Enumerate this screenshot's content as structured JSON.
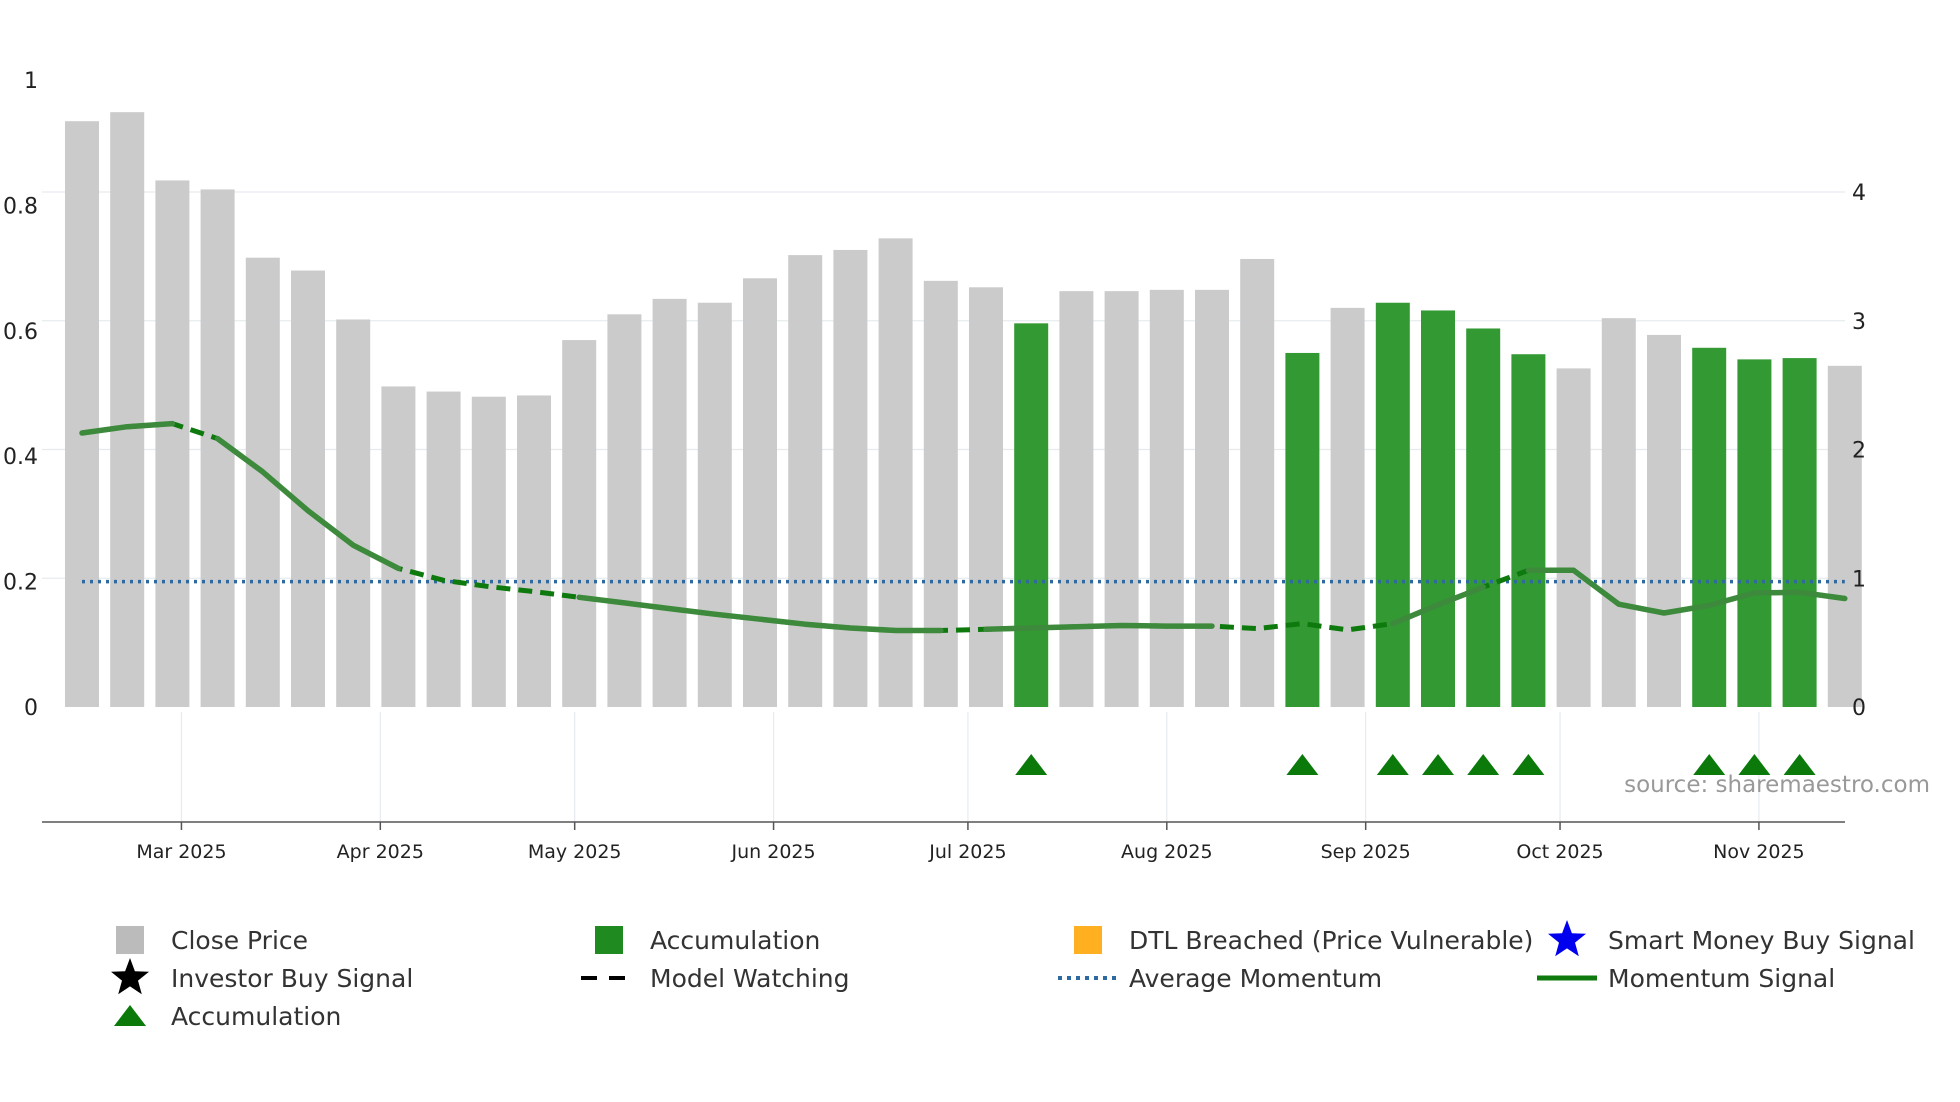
{
  "chart_data": {
    "type": "bar",
    "title": "",
    "left_axis": {
      "ylim": [
        0,
        1
      ],
      "ticks": [
        0,
        0.2,
        0.4,
        0.6,
        0.8,
        1
      ],
      "tick_labels": [
        "0",
        "0.2",
        "0.4",
        "0.6",
        "0.8",
        "1"
      ]
    },
    "right_axis": {
      "ylim": [
        0,
        4.87
      ],
      "ticks": [
        0,
        1,
        2,
        3,
        4
      ],
      "tick_labels": [
        "0",
        "1",
        "2",
        "3",
        "4"
      ]
    },
    "months": [
      {
        "label": "Mar 2025",
        "week_pos": 2.2
      },
      {
        "label": "Apr 2025",
        "week_pos": 6.6
      },
      {
        "label": "May 2025",
        "week_pos": 10.9
      },
      {
        "label": "Jun 2025",
        "week_pos": 15.3
      },
      {
        "label": "Jul 2025",
        "week_pos": 19.6
      },
      {
        "label": "Aug 2025",
        "week_pos": 24.0
      },
      {
        "label": "Sep 2025",
        "week_pos": 28.4
      },
      {
        "label": "Oct 2025",
        "week_pos": 32.7
      },
      {
        "label": "Nov 2025",
        "week_pos": 37.1
      }
    ],
    "series": [
      {
        "name": "Close Price",
        "axis": "right",
        "values": [
          4.55,
          4.62,
          4.09,
          4.02,
          3.49,
          3.39,
          3.01,
          2.49,
          2.45,
          2.41,
          2.42,
          2.85,
          3.05,
          3.17,
          3.14,
          3.33,
          3.51,
          3.55,
          3.64,
          3.31,
          3.26,
          2.98,
          3.23,
          3.23,
          3.24,
          3.24,
          3.48,
          2.75,
          3.1,
          3.14,
          3.08,
          2.94,
          2.74,
          2.63,
          3.02,
          2.89,
          2.79,
          2.7,
          2.71,
          2.65
        ],
        "accumulation": [
          false,
          false,
          false,
          false,
          false,
          false,
          false,
          false,
          false,
          false,
          false,
          false,
          false,
          false,
          false,
          false,
          false,
          false,
          false,
          false,
          false,
          true,
          false,
          false,
          false,
          false,
          false,
          true,
          false,
          true,
          true,
          true,
          true,
          false,
          false,
          false,
          true,
          true,
          true,
          false
        ]
      },
      {
        "name": "Momentum Signal",
        "axis": "left",
        "values": [
          0.437,
          0.447,
          0.452,
          0.428,
          0.375,
          0.313,
          0.258,
          0.221,
          0.202,
          0.192,
          0.184,
          0.175,
          0.166,
          0.157,
          0.148,
          0.14,
          0.132,
          0.126,
          0.122,
          0.122,
          0.124,
          0.126,
          0.128,
          0.13,
          0.129,
          0.129,
          0.125,
          0.133,
          0.123,
          0.133,
          0.163,
          0.191,
          0.218,
          0.218,
          0.164,
          0.15,
          0.162,
          0.182,
          0.183,
          0.173
        ],
        "solid_segments": [
          [
            0,
            2
          ],
          [
            3,
            7
          ],
          [
            11,
            19
          ],
          [
            20,
            25
          ],
          [
            29,
            31
          ],
          [
            32,
            39
          ]
        ]
      },
      {
        "name": "Average Momentum",
        "axis": "left",
        "value": 0.2
      }
    ],
    "accumulation_markers": [
      21,
      27,
      29,
      30,
      31,
      32,
      36,
      37,
      38
    ],
    "legend": [
      {
        "key": "close_price",
        "label": "Close Price",
        "symbol": "square",
        "color": "#bbbbbb"
      },
      {
        "key": "accumulation_bar",
        "label": "Accumulation",
        "symbol": "square",
        "color": "#1f8a1f"
      },
      {
        "key": "dtl",
        "label": "DTL Breached (Price Vulnerable)",
        "symbol": "square",
        "color": "#ffb020"
      },
      {
        "key": "smart_money",
        "label": "Smart Money Buy Signal",
        "symbol": "star",
        "color": "#0000ee"
      },
      {
        "key": "investor_buy",
        "label": "Investor Buy Signal",
        "symbol": "star",
        "color": "#000000"
      },
      {
        "key": "model_watching",
        "label": "Model Watching",
        "symbol": "dash",
        "color": "#000000"
      },
      {
        "key": "avg_momentum",
        "label": "Average Momentum",
        "symbol": "dotted",
        "color": "#2e6a9f"
      },
      {
        "key": "momentum_signal",
        "label": "Momentum Signal",
        "symbol": "line",
        "color": "#0e7a0e"
      },
      {
        "key": "accumulation_marker",
        "label": "Accumulation",
        "symbol": "triangle",
        "color": "#0b7a0b"
      }
    ],
    "source": "source: sharemaestro.com",
    "colors": {
      "bar_gray": "#cbcbcb",
      "bar_green": "#339933",
      "momentum": "#3d8a3d",
      "momentum_watch": "#0e7a0e",
      "avg": "#2e6a9f",
      "marker": "#0b7a0b"
    }
  }
}
